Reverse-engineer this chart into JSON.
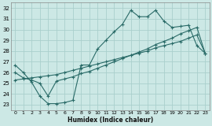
{
  "xlabel": "Humidex (Indice chaleur)",
  "bg_color": "#cce8e5",
  "grid_color": "#aacfcc",
  "line_color": "#2a6b68",
  "xlim": [
    -0.5,
    23.5
  ],
  "ylim": [
    22.5,
    32.5
  ],
  "xticks": [
    0,
    1,
    2,
    3,
    4,
    5,
    6,
    7,
    8,
    9,
    10,
    11,
    12,
    13,
    14,
    15,
    16,
    17,
    18,
    19,
    20,
    21,
    22,
    23
  ],
  "yticks": [
    23,
    24,
    25,
    26,
    27,
    28,
    29,
    30,
    31,
    32
  ],
  "line1_x": [
    0,
    1,
    2,
    3,
    4,
    5,
    6,
    7,
    8,
    9,
    10,
    11,
    12,
    13,
    14,
    15,
    16,
    17,
    18,
    19,
    20,
    21,
    22,
    23
  ],
  "line1_y": [
    26.7,
    26.0,
    25.1,
    23.8,
    23.1,
    23.1,
    23.2,
    23.4,
    26.7,
    26.7,
    28.2,
    29.0,
    29.8,
    30.5,
    31.8,
    31.2,
    31.2,
    31.8,
    30.8,
    30.2,
    30.3,
    30.4,
    28.5,
    27.8
  ],
  "line2_x": [
    0,
    1,
    2,
    3,
    4,
    5,
    6,
    7,
    8,
    9,
    10,
    11,
    12,
    13,
    14,
    15,
    16,
    17,
    18,
    19,
    20,
    21,
    22,
    23
  ],
  "line2_y": [
    25.3,
    25.4,
    25.5,
    25.6,
    25.7,
    25.8,
    26.0,
    26.2,
    26.4,
    26.6,
    26.8,
    27.0,
    27.2,
    27.4,
    27.6,
    27.8,
    28.0,
    28.3,
    28.5,
    28.7,
    28.9,
    29.2,
    29.5,
    27.8
  ],
  "line3_x": [
    0,
    1,
    2,
    3,
    4,
    5,
    6,
    7,
    8,
    9,
    10,
    11,
    12,
    13,
    14,
    15,
    16,
    17,
    18,
    19,
    20,
    21,
    22,
    23
  ],
  "line3_y": [
    26.0,
    25.5,
    25.3,
    25.0,
    23.8,
    25.2,
    25.4,
    25.6,
    25.9,
    26.1,
    26.4,
    26.7,
    27.0,
    27.3,
    27.6,
    27.9,
    28.2,
    28.6,
    28.9,
    29.2,
    29.6,
    29.9,
    30.2,
    27.8
  ],
  "markersize": 3.0,
  "linewidth": 0.8
}
